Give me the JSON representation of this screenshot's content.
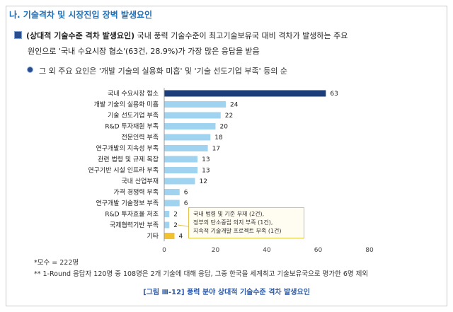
{
  "heading": "나. 기술격차 및 시장진입 장벽 발생요인",
  "bullet1": {
    "lead": "(상대적 기술수준 격차 발생요인)",
    "line1": " 국내 풍력 기술수준이 최고기술보유국 대비 격차가 발생하는 주요",
    "line2": "원인으로 '국내 수요시장 협소'(63건, 28.9%)가 가장 많은 응답을 받음"
  },
  "bullet2": "그 외 주요 요인은 '개발 기술의 실용화 미흡' 및 '기술 선도기업 부족' 등의 순",
  "chart_data": {
    "type": "bar",
    "orientation": "horizontal",
    "categories": [
      "국내 수요시장 협소",
      "개발 기술의 실용화 미흡",
      "기술 선도기업 부족",
      "R&D 투자재원 부족",
      "전문인력 부족",
      "연구개발의 지속성 부족",
      "관련 법령 및 규제 복잡",
      "연구기반 시설 인프라 부족",
      "국내 산업부재",
      "가격 경쟁력 부족",
      "연구개발 기술정보 부족",
      "R&D 투자효율 저조",
      "국제협력기반 부족",
      "기타"
    ],
    "values": [
      63,
      24,
      22,
      20,
      18,
      17,
      13,
      13,
      12,
      6,
      6,
      2,
      2,
      4
    ],
    "xlim": [
      0,
      80
    ],
    "xticks": [
      "0",
      "20",
      "40",
      "60",
      "80"
    ],
    "colors": {
      "top": "#1b3d7a",
      "default": "#9fd3ef",
      "other": "#f2c12e"
    },
    "grid": false,
    "callout": [
      "국내 법령 및 기준 부재 (2건),",
      "정부의 탄소중립 의지 부족 (1건),",
      "지속적 기술개발 프로젝트 부족 (1건)"
    ]
  },
  "notes": {
    "n1": "*모수 = 222명",
    "n2": "** 1-Round 응답자 120명 중 108명은 2개 기술에 대해 응답, 그중 한국을 세계최고 기술보유국으로 평가한 6명 제외"
  },
  "caption": "[그림 Ⅲ-12] 풍력 분야 상대적 기술수준 격차 발생요인"
}
